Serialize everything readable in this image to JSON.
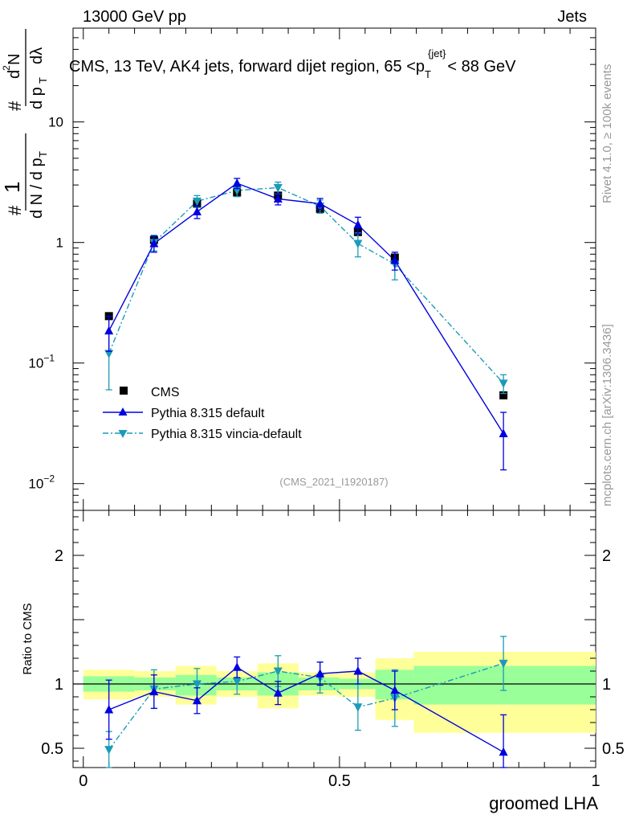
{
  "header": {
    "left": "13000 GeV pp",
    "right": "Jets"
  },
  "side_labels": {
    "rivet": "Rivet 4.1.0, ≥ 100k events",
    "mcplots": "mcplots.cern.ch [arXiv:1306.3436]"
  },
  "colors": {
    "cms": "#000000",
    "default": "#0000e0",
    "vincia": "#1a9bb8",
    "band_yellow": "#ffff99",
    "band_green": "#99ff99"
  },
  "chart_data": [
    {
      "type": "line",
      "title": "CMS, 13 TeV, AK4 jets, forward dijet region, 65 < p_T^{jet} < 88 GeV",
      "title_parts": {
        "main": "CMS, 13 TeV, AK4 jets, forward dijet region, 65 <p",
        "sub": "T",
        "sup": "{jet}",
        "tail": "< 88 GeV"
      },
      "watermark": "(CMS_2021_I1920187)",
      "ylabel": "1/N dN/dp_T d²N/dp_T dλ",
      "yscale": "log",
      "ylim": [
        0.006,
        60
      ],
      "xlim": [
        -0.02,
        1.0
      ],
      "yticks": [
        {
          "v": 0.01,
          "base": "10",
          "exp": "−2"
        },
        {
          "v": 0.1,
          "base": "10",
          "exp": "−1"
        },
        {
          "v": 1,
          "base": "1",
          "exp": ""
        },
        {
          "v": 10,
          "base": "10",
          "exp": ""
        }
      ],
      "series": [
        {
          "name": "CMS",
          "marker": "square",
          "x": [
            0.05,
            0.138,
            0.222,
            0.3,
            0.38,
            0.462,
            0.536,
            0.608,
            0.82
          ],
          "y": [
            0.245,
            1.05,
            2.1,
            2.6,
            2.45,
            1.9,
            1.22,
            0.75,
            0.054
          ]
        },
        {
          "name": "Pythia 8.315 default",
          "marker": "triangle-up",
          "line": "solid",
          "x": [
            0.05,
            0.138,
            0.222,
            0.3,
            0.38,
            0.462,
            0.536,
            0.608,
            0.82
          ],
          "y": [
            0.185,
            0.98,
            1.8,
            3.1,
            2.3,
            2.1,
            1.4,
            0.71,
            0.026
          ],
          "err": [
            0.06,
            0.15,
            0.22,
            0.3,
            0.25,
            0.22,
            0.22,
            0.12,
            0.013
          ]
        },
        {
          "name": "Pythia 8.315 vincia-default",
          "marker": "triangle-down",
          "line": "dashdot",
          "x": [
            0.05,
            0.138,
            0.222,
            0.3,
            0.38,
            0.462,
            0.536,
            0.608,
            0.82
          ],
          "y": [
            0.12,
            1.0,
            2.2,
            2.7,
            2.85,
            2.0,
            0.98,
            0.66,
            0.068
          ],
          "err": [
            0.06,
            0.15,
            0.25,
            0.3,
            0.32,
            0.25,
            0.22,
            0.17,
            0.012
          ]
        }
      ]
    },
    {
      "type": "line",
      "ylabel": "Ratio to CMS",
      "xlabel": "groomed LHA",
      "ylim": [
        0.35,
        2.35
      ],
      "xlim": [
        -0.02,
        1.0
      ],
      "yticks": [
        {
          "v": 0.5,
          "label": "0.5"
        },
        {
          "v": 1,
          "label": "1"
        },
        {
          "v": 2,
          "label": "2"
        }
      ],
      "xticks": [
        {
          "v": 0,
          "label": "0"
        },
        {
          "v": 0.5,
          "label": "0.5"
        },
        {
          "v": 1,
          "label": "1"
        }
      ],
      "bands": [
        {
          "x0": 0.0,
          "x1": 0.1,
          "green": [
            0.94,
            1.06
          ],
          "yellow": [
            0.88,
            1.11
          ]
        },
        {
          "x0": 0.1,
          "x1": 0.18,
          "green": [
            0.95,
            1.05
          ],
          "yellow": [
            0.9,
            1.1
          ]
        },
        {
          "x0": 0.18,
          "x1": 0.26,
          "green": [
            0.91,
            1.07
          ],
          "yellow": [
            0.84,
            1.14
          ]
        },
        {
          "x0": 0.26,
          "x1": 0.34,
          "green": [
            0.95,
            1.05
          ],
          "yellow": [
            0.9,
            1.1
          ]
        },
        {
          "x0": 0.34,
          "x1": 0.42,
          "green": [
            0.91,
            1.09
          ],
          "yellow": [
            0.81,
            1.16
          ]
        },
        {
          "x0": 0.42,
          "x1": 0.5,
          "green": [
            0.95,
            1.05
          ],
          "yellow": [
            0.91,
            1.09
          ]
        },
        {
          "x0": 0.5,
          "x1": 0.57,
          "green": [
            0.96,
            1.04
          ],
          "yellow": [
            0.9,
            1.09
          ]
        },
        {
          "x0": 0.57,
          "x1": 0.645,
          "green": [
            0.88,
            1.11
          ],
          "yellow": [
            0.72,
            1.2
          ]
        },
        {
          "x0": 0.645,
          "x1": 1.0,
          "green": [
            0.84,
            1.14
          ],
          "yellow": [
            0.62,
            1.25
          ]
        }
      ],
      "series": [
        {
          "name": "Pythia 8.315 default",
          "x": [
            0.05,
            0.138,
            0.222,
            0.3,
            0.38,
            0.462,
            0.536,
            0.608,
            0.82
          ],
          "y": [
            0.8,
            0.94,
            0.87,
            1.13,
            0.93,
            1.08,
            1.1,
            0.95,
            0.47
          ],
          "err": [
            0.23,
            0.13,
            0.1,
            0.08,
            0.09,
            0.09,
            0.1,
            0.15,
            0.29
          ]
        },
        {
          "name": "Pythia 8.315 vincia-default",
          "x": [
            0.05,
            0.138,
            0.222,
            0.3,
            0.38,
            0.462,
            0.536,
            0.608,
            0.82
          ],
          "y": [
            0.49,
            0.96,
            1.0,
            1.02,
            1.1,
            1.05,
            0.82,
            0.89,
            1.16
          ],
          "err": [
            0.14,
            0.15,
            0.12,
            0.1,
            0.12,
            0.12,
            0.18,
            0.22,
            0.21
          ]
        }
      ]
    }
  ]
}
